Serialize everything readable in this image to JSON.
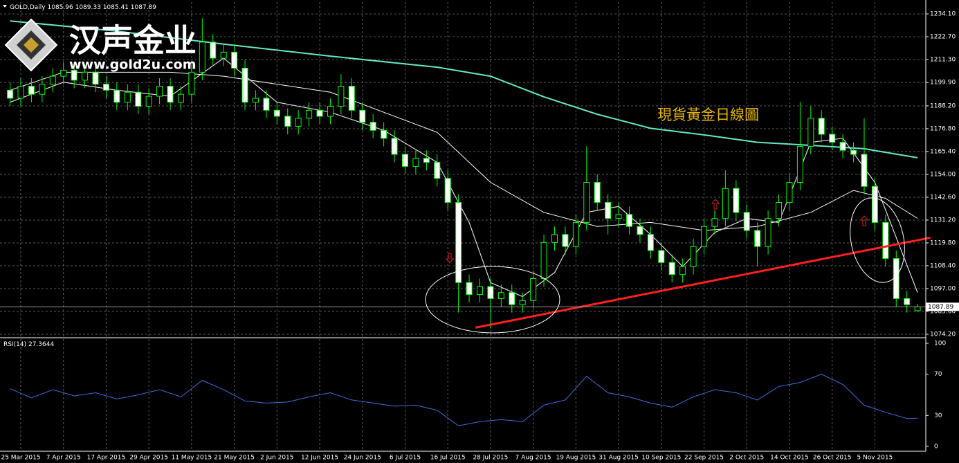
{
  "chart_data": [
    {
      "type": "candlestick",
      "title": "GOLD,Daily",
      "logo": "汉声金业",
      "website": "www.gold2u.com",
      "annotation": "現貨黃金日線圖",
      "categories": [
        null,
        "25 Mar 2015",
        null,
        null,
        null,
        "7 Apr 2015",
        null,
        null,
        null,
        "17 Apr 2015",
        null,
        null,
        null,
        "29 Apr 2015",
        null,
        null,
        null,
        "11 May 2015",
        null,
        null,
        null,
        "21 May 2015",
        null,
        null,
        null,
        "2 Jun 2015",
        null,
        null,
        null,
        "12 Jun 2015",
        null,
        null,
        null,
        "24 Jun 2015",
        null,
        null,
        null,
        "6 Jul 2015",
        null,
        null,
        null,
        "16 Jul 2015",
        null,
        null,
        null,
        "28 Jul 2015",
        null,
        null,
        null,
        "7 Aug 2015",
        null,
        null,
        null,
        "19 Aug 2015",
        null,
        null,
        null,
        "31 Aug 2015",
        null,
        null,
        null,
        "10 Sep 2015",
        null,
        null,
        null,
        "22 Sep 2015",
        null,
        null,
        null,
        "2 Oct 2015",
        null,
        null,
        null,
        "14 Oct 2015",
        null,
        null,
        null,
        "26 Oct 2015",
        null,
        null,
        null,
        "5 Nov 2015",
        null,
        null,
        null,
        null
      ],
      "open": [
        1196,
        1192,
        1198,
        1194,
        1199,
        1203,
        1206,
        1201,
        1205,
        1199,
        1196,
        1190,
        1195,
        1188,
        1193,
        1198,
        1190,
        1194,
        1205,
        1220,
        1212,
        1215,
        1207,
        1190,
        1192,
        1186,
        1183,
        1178,
        1182,
        1186,
        1183,
        1188,
        1198,
        1186,
        1180,
        1176,
        1172,
        1164,
        1158,
        1162,
        1160,
        1152,
        1140,
        1100,
        1094,
        1098,
        1092,
        1095,
        1089,
        1091,
        1102,
        1120,
        1124,
        1118,
        1130,
        1150,
        1140,
        1132,
        1134,
        1128,
        1124,
        1116,
        1110,
        1104,
        1108,
        1118,
        1128,
        1132,
        1147,
        1135,
        1126,
        1118,
        1132,
        1140,
        1150,
        1168,
        1182,
        1174,
        1170,
        1166,
        1164,
        1148,
        1130,
        1112,
        1092,
        1085.96
      ],
      "high": [
        1200,
        1202,
        1202,
        1203,
        1207,
        1210,
        1210,
        1209,
        1209,
        1203,
        1200,
        1199,
        1199,
        1197,
        1202,
        1202,
        1198,
        1209,
        1232,
        1224,
        1219,
        1219,
        1211,
        1196,
        1196,
        1190,
        1187,
        1186,
        1190,
        1190,
        1192,
        1204,
        1202,
        1190,
        1184,
        1180,
        1176,
        1168,
        1166,
        1166,
        1164,
        1156,
        1144,
        1104,
        1102,
        1102,
        1099,
        1099,
        1095,
        1106,
        1124,
        1128,
        1128,
        1134,
        1168,
        1154,
        1144,
        1140,
        1138,
        1132,
        1128,
        1120,
        1114,
        1112,
        1122,
        1132,
        1136,
        1156,
        1151,
        1139,
        1130,
        1136,
        1144,
        1154,
        1190,
        1188,
        1186,
        1178,
        1174,
        1170,
        1182,
        1152,
        1134,
        1116,
        1096,
        1089.33
      ],
      "low": [
        1188,
        1188,
        1190,
        1190,
        1195,
        1199,
        1197,
        1197,
        1195,
        1192,
        1186,
        1186,
        1184,
        1184,
        1189,
        1186,
        1186,
        1190,
        1201,
        1208,
        1208,
        1203,
        1186,
        1186,
        1182,
        1179,
        1174,
        1174,
        1178,
        1179,
        1179,
        1184,
        1182,
        1176,
        1172,
        1168,
        1160,
        1154,
        1154,
        1156,
        1148,
        1136,
        1085,
        1090,
        1090,
        1077,
        1088,
        1085,
        1085,
        1087,
        1098,
        1116,
        1114,
        1114,
        1126,
        1136,
        1124,
        1128,
        1124,
        1120,
        1112,
        1106,
        1100,
        1100,
        1104,
        1114,
        1124,
        1128,
        1131,
        1122,
        1108,
        1114,
        1128,
        1136,
        1146,
        1164,
        1170,
        1166,
        1162,
        1160,
        1144,
        1126,
        1108,
        1088,
        1085,
        1085.41
      ],
      "close": [
        1192,
        1198,
        1194,
        1199,
        1203,
        1206,
        1201,
        1205,
        1199,
        1196,
        1190,
        1195,
        1188,
        1193,
        1198,
        1190,
        1194,
        1205,
        1220,
        1212,
        1215,
        1207,
        1190,
        1192,
        1186,
        1183,
        1178,
        1182,
        1186,
        1183,
        1188,
        1198,
        1186,
        1180,
        1176,
        1172,
        1164,
        1158,
        1162,
        1160,
        1152,
        1140,
        1100,
        1094,
        1098,
        1092,
        1095,
        1089,
        1091,
        1102,
        1120,
        1124,
        1118,
        1130,
        1150,
        1140,
        1132,
        1134,
        1128,
        1124,
        1116,
        1110,
        1104,
        1108,
        1118,
        1128,
        1132,
        1147,
        1135,
        1126,
        1118,
        1132,
        1140,
        1150,
        1168,
        1182,
        1174,
        1170,
        1166,
        1164,
        1148,
        1130,
        1112,
        1092,
        1089,
        1087.89
      ],
      "up_color": "#000000",
      "down_color": "#ffffff",
      "wick_color": "#00ff00",
      "overlays": [
        {
          "color": "#66e8c8",
          "width": 2,
          "x": [
            0,
            10,
            20,
            30,
            40,
            45,
            50,
            55,
            60,
            65,
            70,
            75,
            80,
            85
          ],
          "values": [
            1230.6,
            1225.5,
            1219,
            1213,
            1207.5,
            1203,
            1192.7,
            1184,
            1177,
            1173.7,
            1170,
            1168.5,
            1166.8,
            1162.3
          ]
        },
        {
          "color": "#ffffff",
          "width": 1,
          "x": [
            0,
            5,
            15,
            20,
            30,
            35,
            40,
            45,
            50,
            55,
            60,
            65,
            70,
            75,
            79,
            82,
            85
          ],
          "values": [
            1196,
            1205,
            1205,
            1203,
            1195,
            1185,
            1175,
            1150,
            1135,
            1128,
            1130,
            1126,
            1128,
            1135,
            1146,
            1142,
            1132
          ]
        },
        {
          "color": "#dddddd",
          "width": 1.2,
          "x": [
            0,
            5,
            10,
            15,
            20,
            25,
            30,
            35,
            40,
            43,
            45,
            48,
            51,
            54,
            57,
            60,
            63,
            66,
            69,
            72,
            75,
            78,
            81,
            85
          ],
          "values": [
            1190,
            1200,
            1196,
            1193,
            1212,
            1190,
            1185,
            1176,
            1160,
            1130,
            1100,
            1093,
            1105,
            1135,
            1138,
            1124,
            1108,
            1125,
            1132,
            1130,
            1170,
            1172,
            1150,
            1095
          ]
        }
      ],
      "trendline": {
        "color": "#ff2020",
        "x": [
          43.6,
          86.2
        ],
        "values": [
          1077.5,
          1122.4
        ]
      },
      "ylim": [
        1072.8,
        1240.0
      ],
      "yticks": [
        {
          "value": 1234.1,
          "label": "1234.10"
        },
        {
          "value": 1222.7,
          "label": "1222.70"
        },
        {
          "value": 1211.3,
          "label": "1211.30"
        },
        {
          "value": 1199.9,
          "label": "1199.90"
        },
        {
          "value": 1188.2,
          "label": "1188.20"
        },
        {
          "value": 1176.8,
          "label": "1176.80"
        },
        {
          "value": 1165.4,
          "label": "1165.40"
        },
        {
          "value": 1154,
          "label": "1154.00"
        },
        {
          "value": 1142.6,
          "label": "1142.60"
        },
        {
          "value": 1131.2,
          "label": "1131.20"
        },
        {
          "value": 1119.8,
          "label": "1119.80"
        },
        {
          "value": 1108.4,
          "label": "1108.40"
        },
        {
          "value": 1097,
          "label": "1097.00"
        },
        {
          "value": 1085.6,
          "label": "1085.60"
        },
        {
          "value": 1074.2,
          "label": "1074.20"
        }
      ],
      "grid": true
    },
    {
      "type": "line",
      "label": "RSI(14)",
      "color": "#3f6fe0",
      "x": [
        0,
        2,
        4,
        6,
        8,
        10,
        12,
        14,
        16,
        18,
        20,
        22,
        24,
        26,
        28,
        30,
        32,
        34,
        36,
        38,
        40,
        42,
        44,
        46,
        48,
        50,
        52,
        54,
        56,
        58,
        60,
        62,
        64,
        66,
        68,
        70,
        72,
        74,
        76,
        78,
        80,
        82,
        84,
        85
      ],
      "values": [
        56,
        47,
        55,
        49,
        52,
        46,
        50,
        55,
        48,
        64,
        55,
        44,
        42,
        43,
        48,
        52,
        45,
        42,
        39,
        40,
        35,
        20,
        24,
        26,
        24,
        40,
        45,
        68,
        52,
        48,
        42,
        38,
        48,
        55,
        52,
        45,
        58,
        62,
        70,
        60,
        40,
        33,
        27,
        27.3644
      ],
      "ylim": [
        -4.7,
        104
      ],
      "yticks": [
        0,
        30,
        70,
        100
      ]
    }
  ]
}
